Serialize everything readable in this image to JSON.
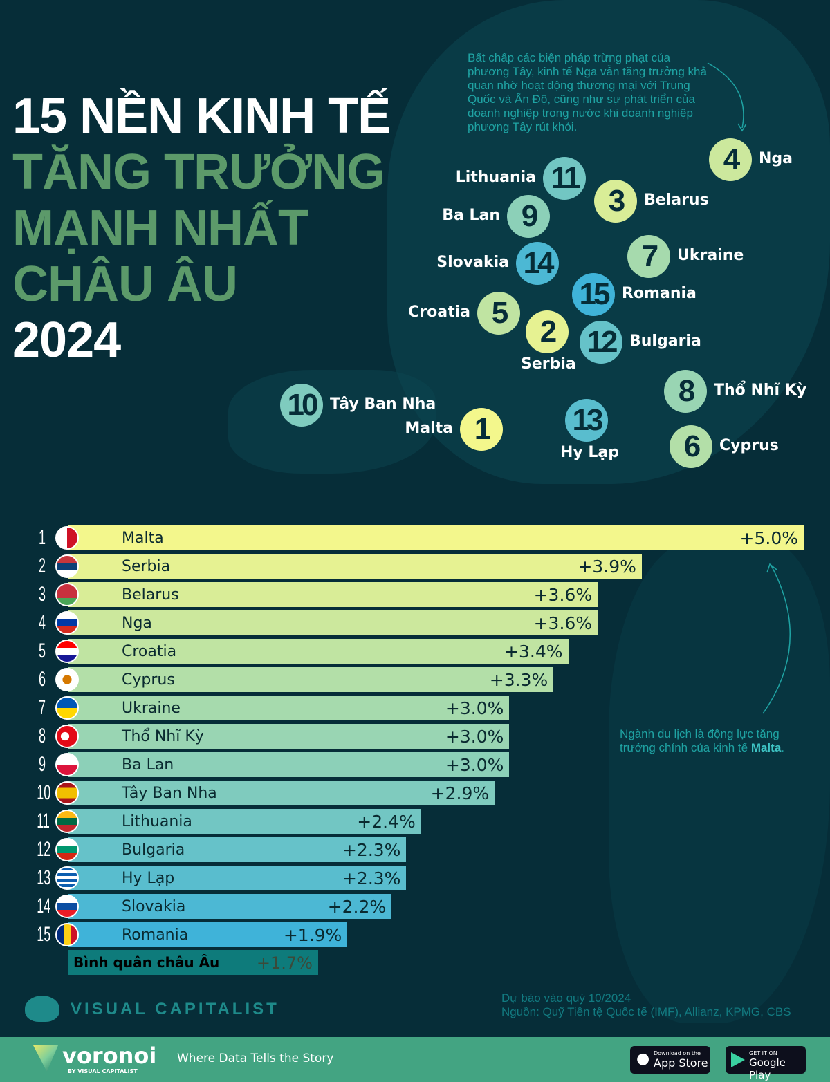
{
  "title": {
    "line1": "15 NỀN KINH TẾ",
    "line2": "TĂNG TRƯỞNG",
    "line3": "MẠNH NHẤT",
    "line4": "CHÂU ÂU",
    "line5": "2024"
  },
  "annotations": {
    "russia": "Bất chấp các biện pháp trừng phạt của phương Tây, kinh tế Nga vẫn tăng trưởng khả quan nhờ hoạt động thương mại với Trung Quốc và Ấn Độ, cũng như sự phát triển của doanh nghiệp trong nước khi doanh nghiệp phương Tây rút khỏi.",
    "malta_prefix": "Ngành du lịch là động lực tăng trưởng chính của kinh tế ",
    "malta_bold": "Malta",
    "malta_suffix": "."
  },
  "chart_data": {
    "type": "bar",
    "orientation": "horizontal",
    "unit": "%",
    "xlim": [
      0,
      5.0
    ],
    "colors": {
      "top": "#f3f78c",
      "bottom": "#3fb3d9",
      "average": "#0e7b7b"
    },
    "categories": [
      "Malta",
      "Serbia",
      "Belarus",
      "Nga",
      "Croatia",
      "Cyprus",
      "Ukraine",
      "Thổ Nhĩ Kỳ",
      "Ba Lan",
      "Tây Ban Nha",
      "Lithuania",
      "Bulgaria",
      "Hy Lạp",
      "Slovakia",
      "Romania"
    ],
    "ranks": [
      "1",
      "2",
      "3",
      "4",
      "5",
      "6",
      "7",
      "8",
      "9",
      "10",
      "11",
      "12",
      "13",
      "14",
      "15"
    ],
    "values": [
      5.0,
      3.9,
      3.6,
      3.6,
      3.4,
      3.3,
      3.0,
      3.0,
      3.0,
      2.9,
      2.4,
      2.3,
      2.3,
      2.2,
      1.9
    ],
    "labels": [
      "+5.0%",
      "+3.9%",
      "+3.6%",
      "+3.6%",
      "+3.4%",
      "+3.3%",
      "+3.0%",
      "+3.0%",
      "+3.0%",
      "+2.9%",
      "+2.4%",
      "+2.3%",
      "+2.3%",
      "+2.2%",
      "+1.9%"
    ],
    "average": {
      "label": "Bình quân châu Âu",
      "value": 1.7,
      "value_label": "+1.7%"
    }
  },
  "source": {
    "line1": "Dự báo vào quý 10/2024",
    "line2": "Nguồn: Quỹ Tiền tệ Quốc tế (IMF), Allianz, KPMG, CBS"
  },
  "brand": {
    "vc": "VISUAL CAPITALIST",
    "voronoi": "voronoi",
    "by": "BY VISUAL CAPITALIST",
    "tagline": "Where Data Tells the Story",
    "appstore_small": "Download on the",
    "appstore": "App Store",
    "gplay_small": "GET IT ON",
    "gplay": "Google Play"
  }
}
